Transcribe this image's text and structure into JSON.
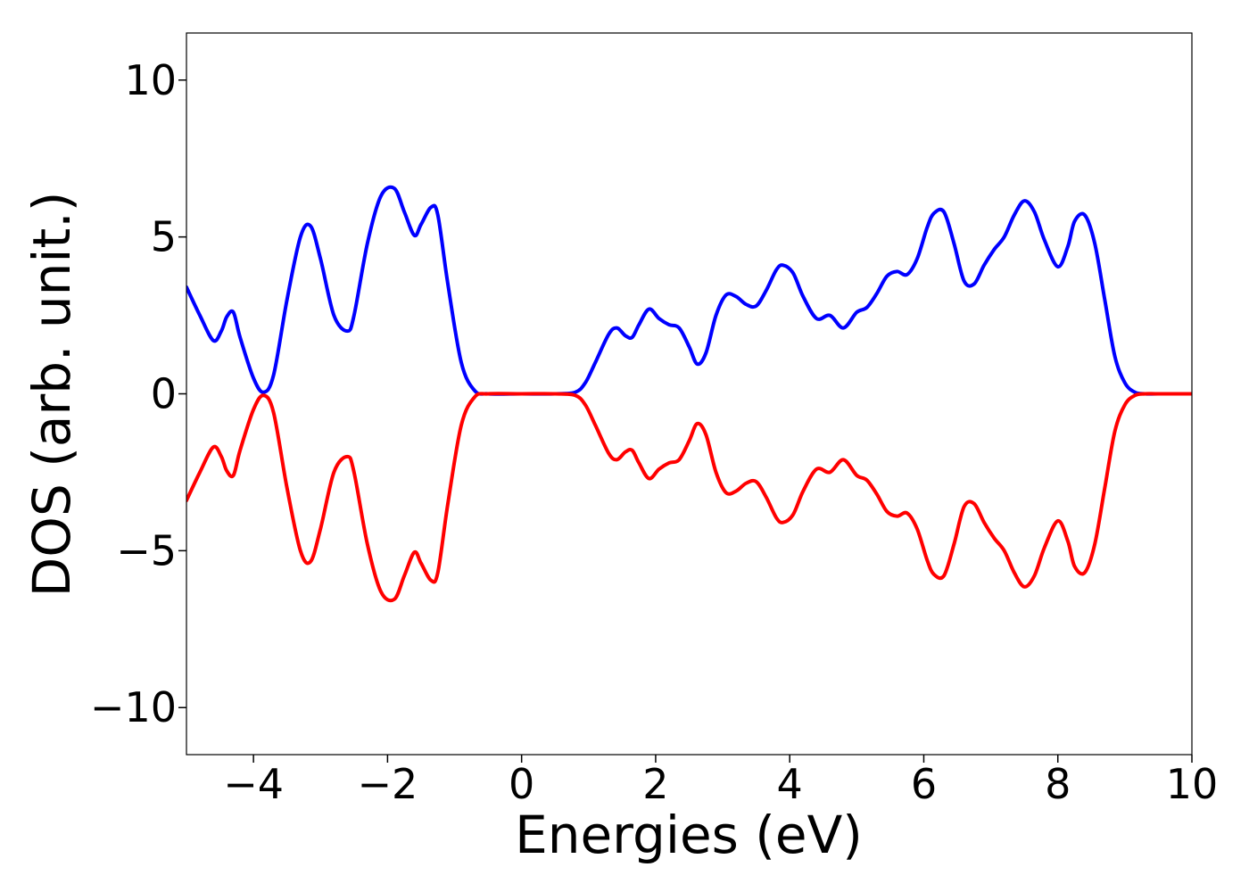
{
  "chart_data": {
    "type": "line",
    "title": "",
    "xlabel": "Energies (eV)",
    "ylabel": "DOS (arb. unit.)",
    "xlim": [
      -5,
      10
    ],
    "ylim": [
      -11.5,
      11.5
    ],
    "xticks": [
      -4,
      -2,
      0,
      2,
      4,
      6,
      8,
      10
    ],
    "xtick_labels": [
      "−4",
      "−2",
      "0",
      "2",
      "4",
      "6",
      "8",
      "10"
    ],
    "yticks": [
      -10,
      -5,
      0,
      5,
      10
    ],
    "ytick_labels": [
      "−10",
      "−5",
      "0",
      "5",
      "10"
    ],
    "grid": false,
    "legend": "none",
    "series": [
      {
        "color": "#0000ff",
        "x": [
          -5.0,
          -4.8,
          -4.6,
          -4.48,
          -4.4,
          -4.3,
          -4.2,
          -4.0,
          -3.85,
          -3.7,
          -3.5,
          -3.3,
          -3.15,
          -3.0,
          -2.8,
          -2.6,
          -2.5,
          -2.3,
          -2.1,
          -1.9,
          -1.75,
          -1.6,
          -1.5,
          -1.35,
          -1.25,
          -1.1,
          -0.9,
          -0.7,
          -0.5,
          0.0,
          0.5,
          0.8,
          0.95,
          1.1,
          1.3,
          1.42,
          1.55,
          1.65,
          1.75,
          1.9,
          2.05,
          2.2,
          2.35,
          2.5,
          2.62,
          2.75,
          2.9,
          3.05,
          3.2,
          3.35,
          3.5,
          3.65,
          3.8,
          3.9,
          4.05,
          4.2,
          4.4,
          4.6,
          4.8,
          5.0,
          5.15,
          5.3,
          5.45,
          5.6,
          5.75,
          5.9,
          6.05,
          6.15,
          6.3,
          6.45,
          6.6,
          6.75,
          6.9,
          7.05,
          7.2,
          7.35,
          7.5,
          7.65,
          7.8,
          8.0,
          8.15,
          8.25,
          8.4,
          8.55,
          8.7,
          8.85,
          9.0,
          9.15,
          9.3,
          9.5,
          10.0
        ],
        "y": [
          3.4,
          2.5,
          1.7,
          2.0,
          2.45,
          2.6,
          1.8,
          0.5,
          0.05,
          0.6,
          3.0,
          5.0,
          5.35,
          4.3,
          2.5,
          2.0,
          2.5,
          4.8,
          6.3,
          6.55,
          5.8,
          5.05,
          5.4,
          5.95,
          5.7,
          3.5,
          1.0,
          0.1,
          0.0,
          0.0,
          0.0,
          0.05,
          0.35,
          1.0,
          1.9,
          2.1,
          1.85,
          1.8,
          2.2,
          2.7,
          2.4,
          2.2,
          2.1,
          1.5,
          0.95,
          1.3,
          2.5,
          3.15,
          3.1,
          2.85,
          2.8,
          3.3,
          3.95,
          4.1,
          3.85,
          3.1,
          2.4,
          2.5,
          2.1,
          2.6,
          2.75,
          3.2,
          3.75,
          3.9,
          3.8,
          4.3,
          5.3,
          5.75,
          5.8,
          4.8,
          3.6,
          3.5,
          4.1,
          4.6,
          5.0,
          5.7,
          6.15,
          5.8,
          4.9,
          4.05,
          4.7,
          5.5,
          5.7,
          4.8,
          3.0,
          1.2,
          0.35,
          0.05,
          0.0,
          0.0,
          0.0
        ]
      },
      {
        "color": "#ff0000",
        "x": [
          -5.0,
          -4.8,
          -4.6,
          -4.48,
          -4.4,
          -4.3,
          -4.2,
          -4.0,
          -3.85,
          -3.7,
          -3.5,
          -3.3,
          -3.15,
          -3.0,
          -2.8,
          -2.6,
          -2.5,
          -2.3,
          -2.1,
          -1.9,
          -1.75,
          -1.6,
          -1.5,
          -1.35,
          -1.25,
          -1.1,
          -0.9,
          -0.7,
          -0.5,
          0.0,
          0.5,
          0.8,
          0.95,
          1.1,
          1.3,
          1.42,
          1.55,
          1.65,
          1.75,
          1.9,
          2.05,
          2.2,
          2.35,
          2.5,
          2.62,
          2.75,
          2.9,
          3.05,
          3.2,
          3.35,
          3.5,
          3.65,
          3.8,
          3.9,
          4.05,
          4.2,
          4.4,
          4.6,
          4.8,
          5.0,
          5.15,
          5.3,
          5.45,
          5.6,
          5.75,
          5.9,
          6.05,
          6.15,
          6.3,
          6.45,
          6.6,
          6.75,
          6.9,
          7.05,
          7.2,
          7.35,
          7.5,
          7.65,
          7.8,
          8.0,
          8.15,
          8.25,
          8.4,
          8.55,
          8.7,
          8.85,
          9.0,
          9.15,
          9.3,
          9.5,
          10.0
        ],
        "y": [
          -3.4,
          -2.5,
          -1.7,
          -2.0,
          -2.45,
          -2.6,
          -1.8,
          -0.5,
          -0.05,
          -0.6,
          -3.0,
          -5.0,
          -5.35,
          -4.3,
          -2.5,
          -2.0,
          -2.5,
          -4.8,
          -6.3,
          -6.55,
          -5.8,
          -5.05,
          -5.4,
          -5.95,
          -5.7,
          -3.5,
          -1.0,
          -0.1,
          -0.0,
          -0.0,
          -0.0,
          -0.05,
          -0.35,
          -1.0,
          -1.9,
          -2.1,
          -1.85,
          -1.8,
          -2.2,
          -2.7,
          -2.4,
          -2.2,
          -2.1,
          -1.5,
          -0.95,
          -1.3,
          -2.5,
          -3.15,
          -3.1,
          -2.85,
          -2.8,
          -3.3,
          -3.95,
          -4.1,
          -3.85,
          -3.1,
          -2.4,
          -2.5,
          -2.1,
          -2.6,
          -2.75,
          -3.2,
          -3.75,
          -3.9,
          -3.8,
          -4.3,
          -5.3,
          -5.75,
          -5.8,
          -4.8,
          -3.6,
          -3.5,
          -4.1,
          -4.6,
          -5.0,
          -5.7,
          -6.15,
          -5.8,
          -4.9,
          -4.05,
          -4.7,
          -5.5,
          -5.7,
          -4.8,
          -3.0,
          -1.2,
          -0.35,
          -0.05,
          -0.0,
          -0.0,
          -0.0
        ]
      }
    ]
  }
}
